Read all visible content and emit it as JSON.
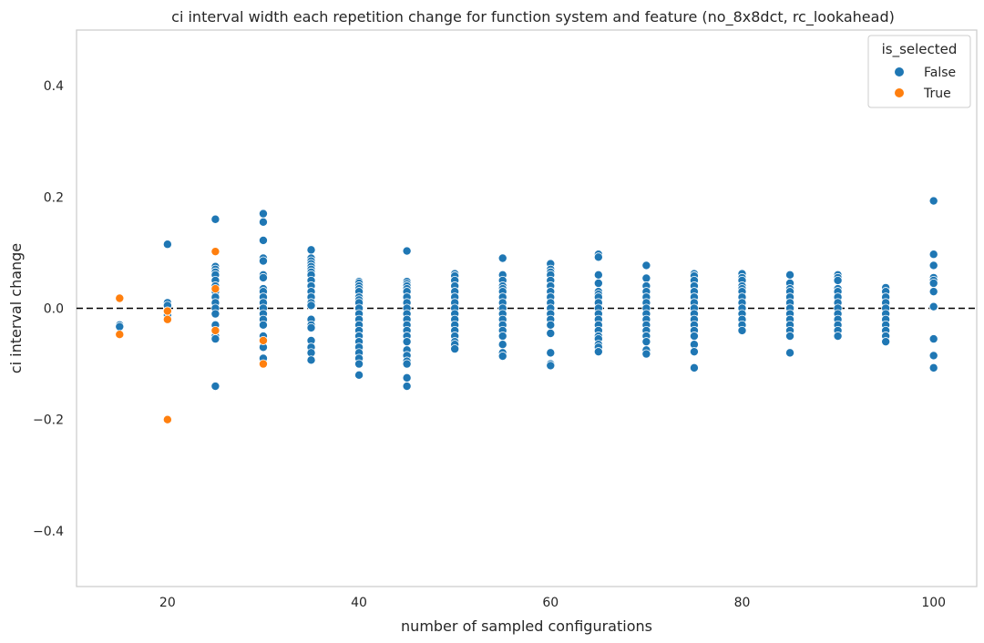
{
  "chart_data": {
    "type": "scatter",
    "title": "ci interval width each repetition change for function system and feature (no_8x8dct, rc_lookahead)",
    "xlabel": "number of sampled configurations",
    "ylabel": "ci interval change",
    "xlim": [
      10.5,
      104.5
    ],
    "ylim": [
      -0.5,
      0.5
    ],
    "xticks": [
      20,
      40,
      60,
      80,
      100
    ],
    "yticks": [
      -0.4,
      -0.2,
      0.0,
      0.2,
      0.4
    ],
    "ytick_labels": [
      "−0.4",
      "−0.2",
      "0.0",
      "0.2",
      "0.4"
    ],
    "grid": false,
    "reference_line": {
      "y": 0.0,
      "style": "dashed",
      "color": "#000000"
    },
    "legend": {
      "title": "is_selected",
      "placement": "top-right",
      "entries": [
        {
          "label": "False",
          "color": "#1f77b4"
        },
        {
          "label": "True",
          "color": "#ff7f0e"
        }
      ]
    },
    "series": [
      {
        "name": "False",
        "color": "#1f77b4",
        "points": [
          [
            15,
            -0.03
          ],
          [
            15,
            -0.033
          ],
          [
            20,
            0.115
          ],
          [
            20,
            0.01
          ],
          [
            20,
            0.005
          ],
          [
            20,
            -0.012
          ],
          [
            25,
            0.16
          ],
          [
            25,
            0.075
          ],
          [
            25,
            0.07
          ],
          [
            25,
            0.065
          ],
          [
            25,
            0.06
          ],
          [
            25,
            0.05
          ],
          [
            25,
            0.04
          ],
          [
            25,
            0.03
          ],
          [
            25,
            0.02
          ],
          [
            25,
            0.01
          ],
          [
            25,
            0.0
          ],
          [
            25,
            -0.01
          ],
          [
            25,
            -0.03
          ],
          [
            25,
            -0.05
          ],
          [
            25,
            -0.055
          ],
          [
            25,
            -0.14
          ],
          [
            30,
            0.17
          ],
          [
            30,
            0.155
          ],
          [
            30,
            0.122
          ],
          [
            30,
            0.09
          ],
          [
            30,
            0.085
          ],
          [
            30,
            0.06
          ],
          [
            30,
            0.055
          ],
          [
            30,
            0.035
          ],
          [
            30,
            0.03
          ],
          [
            30,
            0.02
          ],
          [
            30,
            0.01
          ],
          [
            30,
            0.0
          ],
          [
            30,
            -0.01
          ],
          [
            30,
            -0.02
          ],
          [
            30,
            -0.03
          ],
          [
            30,
            -0.05
          ],
          [
            30,
            -0.07
          ],
          [
            30,
            -0.09
          ],
          [
            35,
            0.105
          ],
          [
            35,
            0.09
          ],
          [
            35,
            0.085
          ],
          [
            35,
            0.08
          ],
          [
            35,
            0.075
          ],
          [
            35,
            0.07
          ],
          [
            35,
            0.065
          ],
          [
            35,
            0.06
          ],
          [
            35,
            0.05
          ],
          [
            35,
            0.04
          ],
          [
            35,
            0.03
          ],
          [
            35,
            0.02
          ],
          [
            35,
            0.01
          ],
          [
            35,
            0.005
          ],
          [
            35,
            -0.02
          ],
          [
            35,
            -0.03
          ],
          [
            35,
            -0.035
          ],
          [
            35,
            -0.058
          ],
          [
            35,
            -0.07
          ],
          [
            35,
            -0.08
          ],
          [
            35,
            -0.093
          ],
          [
            40,
            0.048
          ],
          [
            40,
            0.045
          ],
          [
            40,
            0.04
          ],
          [
            40,
            0.035
          ],
          [
            40,
            0.03
          ],
          [
            40,
            0.02
          ],
          [
            40,
            0.015
          ],
          [
            40,
            0.01
          ],
          [
            40,
            0.0
          ],
          [
            40,
            -0.01
          ],
          [
            40,
            -0.02
          ],
          [
            40,
            -0.03
          ],
          [
            40,
            -0.04
          ],
          [
            40,
            -0.05
          ],
          [
            40,
            -0.06
          ],
          [
            40,
            -0.07
          ],
          [
            40,
            -0.08
          ],
          [
            40,
            -0.09
          ],
          [
            40,
            -0.1
          ],
          [
            40,
            -0.12
          ],
          [
            45,
            0.103
          ],
          [
            45,
            0.048
          ],
          [
            45,
            0.044
          ],
          [
            45,
            0.04
          ],
          [
            45,
            0.035
          ],
          [
            45,
            0.03
          ],
          [
            45,
            0.02
          ],
          [
            45,
            0.01
          ],
          [
            45,
            0.0
          ],
          [
            45,
            -0.01
          ],
          [
            45,
            -0.02
          ],
          [
            45,
            -0.03
          ],
          [
            45,
            -0.04
          ],
          [
            45,
            -0.05
          ],
          [
            45,
            -0.06
          ],
          [
            45,
            -0.075
          ],
          [
            45,
            -0.085
          ],
          [
            45,
            -0.095
          ],
          [
            45,
            -0.1
          ],
          [
            45,
            -0.125
          ],
          [
            45,
            -0.14
          ],
          [
            50,
            0.062
          ],
          [
            50,
            0.058
          ],
          [
            50,
            0.05
          ],
          [
            50,
            0.04
          ],
          [
            50,
            0.03
          ],
          [
            50,
            0.02
          ],
          [
            50,
            0.01
          ],
          [
            50,
            0.0
          ],
          [
            50,
            -0.01
          ],
          [
            50,
            -0.02
          ],
          [
            50,
            -0.03
          ],
          [
            50,
            -0.04
          ],
          [
            50,
            -0.05
          ],
          [
            50,
            -0.06
          ],
          [
            50,
            -0.065
          ],
          [
            50,
            -0.073
          ],
          [
            55,
            0.09
          ],
          [
            55,
            0.06
          ],
          [
            55,
            0.05
          ],
          [
            55,
            0.04
          ],
          [
            55,
            0.035
          ],
          [
            55,
            0.03
          ],
          [
            55,
            0.02
          ],
          [
            55,
            0.01
          ],
          [
            55,
            0.0
          ],
          [
            55,
            -0.01
          ],
          [
            55,
            -0.02
          ],
          [
            55,
            -0.03
          ],
          [
            55,
            -0.04
          ],
          [
            55,
            -0.05
          ],
          [
            55,
            -0.065
          ],
          [
            55,
            -0.08
          ],
          [
            55,
            -0.086
          ],
          [
            60,
            0.08
          ],
          [
            60,
            0.07
          ],
          [
            60,
            0.065
          ],
          [
            60,
            0.06
          ],
          [
            60,
            0.05
          ],
          [
            60,
            0.04
          ],
          [
            60,
            0.03
          ],
          [
            60,
            0.02
          ],
          [
            60,
            0.01
          ],
          [
            60,
            0.0
          ],
          [
            60,
            -0.01
          ],
          [
            60,
            -0.02
          ],
          [
            60,
            -0.03
          ],
          [
            60,
            -0.045
          ],
          [
            60,
            -0.08
          ],
          [
            60,
            -0.1
          ],
          [
            60,
            -0.103
          ],
          [
            65,
            0.097
          ],
          [
            65,
            0.092
          ],
          [
            65,
            0.06
          ],
          [
            65,
            0.045
          ],
          [
            65,
            0.03
          ],
          [
            65,
            0.025
          ],
          [
            65,
            0.02
          ],
          [
            65,
            0.01
          ],
          [
            65,
            0.0
          ],
          [
            65,
            -0.01
          ],
          [
            65,
            -0.02
          ],
          [
            65,
            -0.03
          ],
          [
            65,
            -0.04
          ],
          [
            65,
            -0.05
          ],
          [
            65,
            -0.055
          ],
          [
            65,
            -0.065
          ],
          [
            65,
            -0.07
          ],
          [
            65,
            -0.078
          ],
          [
            70,
            0.077
          ],
          [
            70,
            0.054
          ],
          [
            70,
            0.04
          ],
          [
            70,
            0.03
          ],
          [
            70,
            0.02
          ],
          [
            70,
            0.01
          ],
          [
            70,
            0.0
          ],
          [
            70,
            -0.01
          ],
          [
            70,
            -0.02
          ],
          [
            70,
            -0.03
          ],
          [
            70,
            -0.04
          ],
          [
            70,
            -0.05
          ],
          [
            70,
            -0.06
          ],
          [
            70,
            -0.075
          ],
          [
            70,
            -0.082
          ],
          [
            75,
            0.062
          ],
          [
            75,
            0.058
          ],
          [
            75,
            0.05
          ],
          [
            75,
            0.04
          ],
          [
            75,
            0.03
          ],
          [
            75,
            0.02
          ],
          [
            75,
            0.01
          ],
          [
            75,
            0.0
          ],
          [
            75,
            -0.01
          ],
          [
            75,
            -0.02
          ],
          [
            75,
            -0.03
          ],
          [
            75,
            -0.04
          ],
          [
            75,
            -0.05
          ],
          [
            75,
            -0.065
          ],
          [
            75,
            -0.078
          ],
          [
            75,
            -0.107
          ],
          [
            80,
            0.062
          ],
          [
            80,
            0.055
          ],
          [
            80,
            0.05
          ],
          [
            80,
            0.04
          ],
          [
            80,
            0.035
          ],
          [
            80,
            0.03
          ],
          [
            80,
            0.02
          ],
          [
            80,
            0.01
          ],
          [
            80,
            0.0
          ],
          [
            80,
            -0.01
          ],
          [
            80,
            -0.02
          ],
          [
            80,
            -0.03
          ],
          [
            80,
            -0.04
          ],
          [
            85,
            0.06
          ],
          [
            85,
            0.045
          ],
          [
            85,
            0.035
          ],
          [
            85,
            0.03
          ],
          [
            85,
            0.02
          ],
          [
            85,
            0.01
          ],
          [
            85,
            0.0
          ],
          [
            85,
            -0.01
          ],
          [
            85,
            -0.02
          ],
          [
            85,
            -0.03
          ],
          [
            85,
            -0.04
          ],
          [
            85,
            -0.05
          ],
          [
            85,
            -0.08
          ],
          [
            90,
            0.06
          ],
          [
            90,
            0.055
          ],
          [
            90,
            0.05
          ],
          [
            90,
            0.035
          ],
          [
            90,
            0.03
          ],
          [
            90,
            0.02
          ],
          [
            90,
            0.01
          ],
          [
            90,
            0.0
          ],
          [
            90,
            -0.01
          ],
          [
            90,
            -0.02
          ],
          [
            90,
            -0.03
          ],
          [
            90,
            -0.04
          ],
          [
            90,
            -0.05
          ],
          [
            95,
            0.037
          ],
          [
            95,
            0.03
          ],
          [
            95,
            0.02
          ],
          [
            95,
            0.01
          ],
          [
            95,
            0.0
          ],
          [
            95,
            -0.01
          ],
          [
            95,
            -0.02
          ],
          [
            95,
            -0.03
          ],
          [
            95,
            -0.04
          ],
          [
            95,
            -0.05
          ],
          [
            95,
            -0.06
          ],
          [
            100,
            0.193
          ],
          [
            100,
            0.097
          ],
          [
            100,
            0.077
          ],
          [
            100,
            0.055
          ],
          [
            100,
            0.05
          ],
          [
            100,
            0.045
          ],
          [
            100,
            0.03
          ],
          [
            100,
            0.003
          ],
          [
            100,
            -0.055
          ],
          [
            100,
            -0.085
          ],
          [
            100,
            -0.107
          ]
        ]
      },
      {
        "name": "True",
        "color": "#ff7f0e",
        "points": [
          [
            15,
            0.018
          ],
          [
            15,
            -0.047
          ],
          [
            20,
            -0.005
          ],
          [
            20,
            -0.02
          ],
          [
            20,
            -0.2
          ],
          [
            25,
            0.102
          ],
          [
            25,
            0.035
          ],
          [
            25,
            -0.04
          ],
          [
            30,
            -0.058
          ],
          [
            30,
            -0.1
          ]
        ]
      }
    ]
  }
}
